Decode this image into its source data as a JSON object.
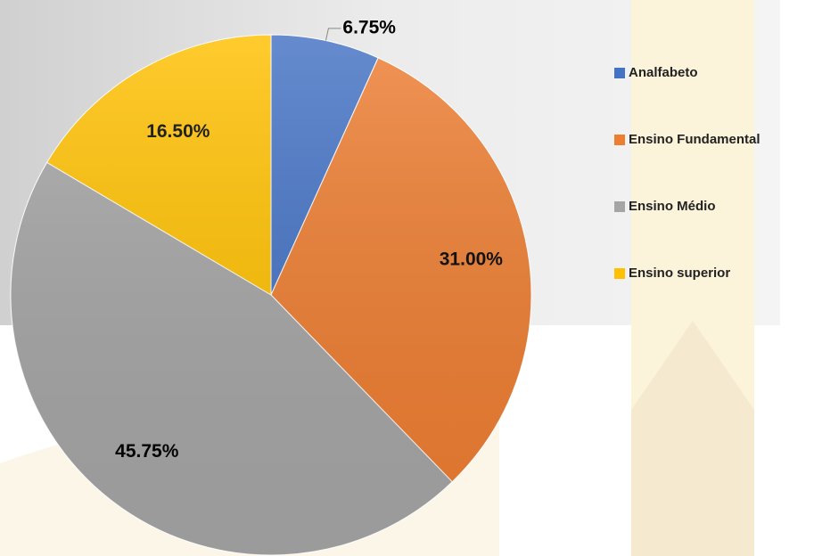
{
  "chart_data": {
    "type": "pie",
    "categories": [
      "Analfabeto",
      "Ensino Fundamental",
      "Ensino Médio",
      "Ensino superior"
    ],
    "values": [
      6.75,
      31.0,
      45.75,
      16.5
    ],
    "value_labels": [
      "6.75%",
      "31.00%",
      "45.75%",
      "16.50%"
    ],
    "colors": [
      "#4472c4",
      "#ed7d31",
      "#a5a5a5",
      "#ffc000"
    ],
    "legend": "right"
  }
}
